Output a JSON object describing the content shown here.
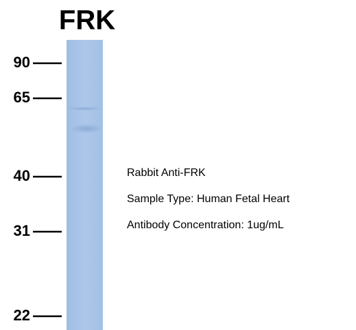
{
  "title": "FRK",
  "markers": [
    "90",
    "65",
    "40",
    "31",
    "22"
  ],
  "info": [
    "Rabbit Anti-FRK",
    "Sample Type: Human Fetal Heart",
    "Antibody Concentration: 1ug/mL"
  ]
}
